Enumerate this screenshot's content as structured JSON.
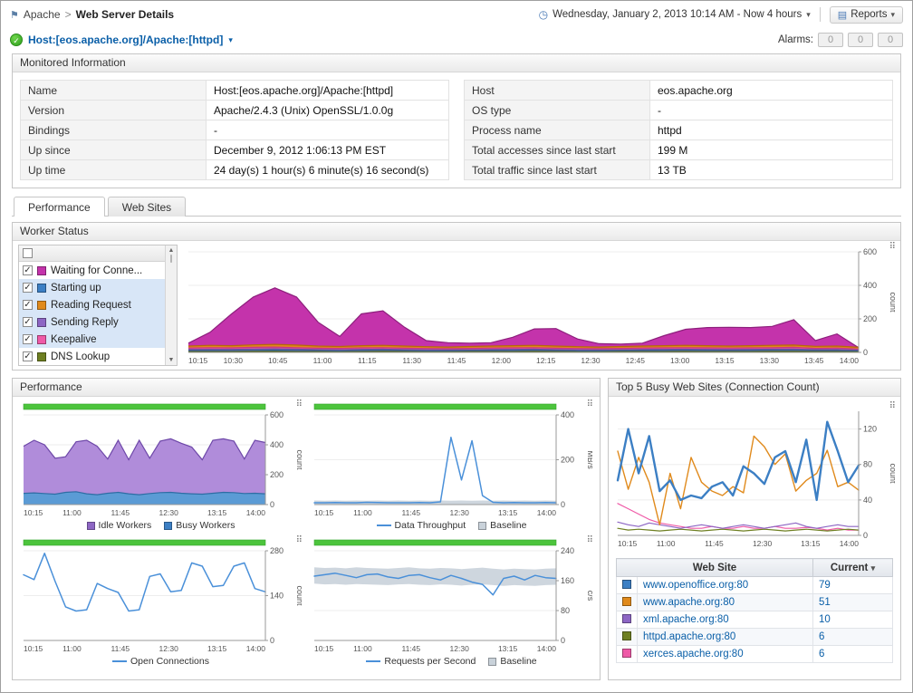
{
  "icons": {
    "clock": "◷",
    "dropdown": "▾",
    "reports": "▤",
    "flag": "⚑",
    "check": "✓",
    "options": "⠿",
    "sort": "▾",
    "scroll_up": "▲",
    "scroll_down": "▼"
  },
  "header": {
    "breadcrumb_parent": "Apache",
    "breadcrumb_sep": ">",
    "breadcrumb_current": "Web Server Details",
    "time_range": "Wednesday, January 2, 2013 10:14 AM - Now 4 hours",
    "reports_label": "Reports"
  },
  "hostbar": {
    "host_label": "Host:[eos.apache.org]/Apache:[httpd]",
    "alarms_label": "Alarms:",
    "alarm_counts": [
      "0",
      "0",
      "0"
    ]
  },
  "monitored_info": {
    "title": "Monitored Information",
    "left_rows": [
      [
        "Name",
        "Host:[eos.apache.org]/Apache:[httpd]"
      ],
      [
        "Version",
        "Apache/2.4.3 (Unix) OpenSSL/1.0.0g"
      ],
      [
        "Bindings",
        "-"
      ],
      [
        "Up since",
        "December 9, 2012 1:06:13 PM EST"
      ],
      [
        "Up time",
        "24 day(s) 1 hour(s) 6 minute(s) 16 second(s)"
      ]
    ],
    "right_rows": [
      [
        "Host",
        "eos.apache.org"
      ],
      [
        "OS type",
        "-"
      ],
      [
        "Process name",
        "httpd"
      ],
      [
        "Total accesses since last start",
        "199 M"
      ],
      [
        "Total traffic since last start",
        "13 TB"
      ]
    ]
  },
  "tabs": [
    {
      "label": "Performance",
      "active": true
    },
    {
      "label": "Web Sites",
      "active": false
    }
  ],
  "worker_status": {
    "title": "Worker Status",
    "items": [
      {
        "label": "Waiting for Conne...",
        "color": "#c433ab",
        "checked": true,
        "selected": false
      },
      {
        "label": "Starting up",
        "color": "#3c7fc4",
        "checked": true,
        "selected": true
      },
      {
        "label": "Reading Request",
        "color": "#e08a1c",
        "checked": true,
        "selected": true
      },
      {
        "label": "Sending Reply",
        "color": "#8d66c4",
        "checked": true,
        "selected": true
      },
      {
        "label": "Keepalive",
        "color": "#ef5aa7",
        "checked": true,
        "selected": true
      },
      {
        "label": "DNS Lookup",
        "color": "#6e7f21",
        "checked": true,
        "selected": false
      }
    ]
  },
  "performance_panel": {
    "title": "Performance"
  },
  "top5": {
    "title": "Top 5 Busy Web Sites (Connection Count)",
    "table": {
      "web_site_header": "Web Site",
      "current_header": "Current",
      "rows": [
        {
          "color": "#3c7fc4",
          "site": "www.openoffice.org:80",
          "current": "79"
        },
        {
          "color": "#e08a1c",
          "site": "www.apache.org:80",
          "current": "51"
        },
        {
          "color": "#8d66c4",
          "site": "xml.apache.org:80",
          "current": "10"
        },
        {
          "color": "#6e7f21",
          "site": "httpd.apache.org:80",
          "current": "6"
        },
        {
          "color": "#ef5aa7",
          "site": "xerces.apache.org:80",
          "current": "6"
        }
      ]
    }
  },
  "chart_data": {
    "worker": {
      "type": "area",
      "greenbar": false,
      "ylim": [
        0,
        600
      ],
      "yticks": [
        0,
        200,
        400,
        600
      ],
      "ylabel": "count",
      "xticks": [
        "10:15",
        "10:30",
        "10:45",
        "11:00",
        "11:15",
        "11:30",
        "11:45",
        "12:00",
        "12:15",
        "12:30",
        "12:45",
        "13:00",
        "13:15",
        "13:30",
        "13:45",
        "14:00"
      ],
      "series": [
        {
          "name": "Waiting for Connection",
          "type": "area",
          "fill": "#c433ab",
          "color": "#8d1f7c",
          "values": [
            55,
            120,
            230,
            330,
            385,
            330,
            180,
            95,
            230,
            248,
            150,
            70,
            58,
            55,
            58,
            90,
            140,
            142,
            80,
            52,
            50,
            55,
            100,
            138,
            148,
            150,
            148,
            155,
            195,
            70,
            110,
            28
          ]
        },
        {
          "name": "Reading Request",
          "type": "area",
          "fill": "#e0861b",
          "color": "#b5680a",
          "values": [
            38,
            42,
            40,
            45,
            48,
            44,
            38,
            35,
            40,
            42,
            38,
            34,
            32,
            35,
            38,
            40,
            42,
            38,
            34,
            32,
            35,
            38,
            40,
            42,
            40,
            38,
            40,
            42,
            44,
            36,
            38,
            30
          ]
        },
        {
          "name": "Keepalive",
          "type": "area",
          "fill": "#ef5aa7",
          "color": "#c73583",
          "values": [
            26,
            28,
            27,
            30,
            32,
            28,
            25,
            24,
            27,
            28,
            25,
            23,
            22,
            24,
            26,
            27,
            28,
            25,
            23,
            22,
            24,
            26,
            27,
            28,
            27,
            26,
            27,
            28,
            30,
            24,
            26,
            20
          ]
        },
        {
          "name": "Sending Reply",
          "type": "area",
          "fill": "#8f6cc0",
          "color": "#6a4a99",
          "values": [
            17,
            18,
            18,
            20,
            21,
            19,
            16,
            15,
            18,
            19,
            16,
            15,
            14,
            15,
            17,
            18,
            19,
            16,
            15,
            14,
            15,
            17,
            18,
            19,
            18,
            17,
            18,
            19,
            20,
            16,
            17,
            13
          ]
        },
        {
          "name": "Starting up",
          "type": "area",
          "fill": "#4a86c8",
          "color": "#2f62a0",
          "values": [
            10,
            11,
            10,
            12,
            13,
            11,
            10,
            9,
            11,
            12,
            10,
            9,
            9,
            10,
            11,
            11,
            12,
            10,
            9,
            9,
            10,
            11,
            11,
            12,
            11,
            10,
            11,
            12,
            12,
            10,
            10,
            8
          ]
        },
        {
          "name": "DNS Lookup",
          "type": "area",
          "fill": "#6e7f21",
          "color": "#55641a",
          "values": [
            5,
            5,
            5,
            6,
            6,
            5,
            5,
            4,
            5,
            6,
            5,
            4,
            4,
            5,
            5,
            5,
            6,
            5,
            4,
            4,
            5,
            5,
            5,
            6,
            5,
            5,
            5,
            6,
            6,
            5,
            5,
            4
          ]
        }
      ]
    },
    "idle_busy": {
      "type": "area",
      "greenbar": true,
      "ylim": [
        0,
        600
      ],
      "yticks": [
        0,
        200,
        400,
        600
      ],
      "ylabel": "count",
      "xticks": [
        "10:15",
        "11:00",
        "11:45",
        "12:30",
        "13:15",
        "14:00"
      ],
      "series": [
        {
          "name": "Idle Workers",
          "type": "area",
          "fill": "#a77fd6",
          "opacity": 0.9,
          "color": "#6d47a8",
          "values": [
            390,
            430,
            400,
            310,
            320,
            420,
            430,
            390,
            305,
            430,
            300,
            430,
            310,
            425,
            440,
            410,
            385,
            300,
            430,
            440,
            425,
            305,
            430,
            415
          ]
        },
        {
          "name": "Busy Workers",
          "type": "area",
          "fill": "#5b9bd5",
          "color": "#2e6da4",
          "values": [
            75,
            78,
            74,
            70,
            82,
            86,
            72,
            66,
            76,
            82,
            72,
            66,
            74,
            80,
            82,
            76,
            72,
            70,
            76,
            82,
            80,
            74,
            76,
            72
          ]
        }
      ],
      "legend": [
        {
          "label": "Idle Workers",
          "color": "#8d66c4",
          "shape": "square"
        },
        {
          "label": "Busy Workers",
          "color": "#3c7fc4",
          "shape": "square"
        }
      ]
    },
    "throughput": {
      "type": "line",
      "greenbar": true,
      "ylim": [
        0,
        400
      ],
      "yticks": [
        0,
        200,
        400
      ],
      "ylabel": "MB/s",
      "xticks": [
        "10:15",
        "11:00",
        "11:45",
        "12:30",
        "13:15",
        "14:00"
      ],
      "series": [
        {
          "name": "Baseline",
          "type": "band",
          "fill": "#c9d2da",
          "values": [
            18,
            17,
            18,
            17,
            18,
            17,
            18,
            17,
            18,
            17,
            18,
            17,
            18,
            17,
            18,
            17,
            18,
            17,
            18,
            17,
            18,
            17,
            18,
            17
          ],
          "values_low": [
            2,
            2,
            2,
            2,
            2,
            2,
            2,
            2,
            2,
            2,
            2,
            2,
            2,
            2,
            2,
            2,
            2,
            2,
            2,
            2,
            2,
            2,
            2,
            2
          ]
        },
        {
          "name": "Data Throughput",
          "type": "line",
          "color": "#4a90d9",
          "width": 1.5,
          "values": [
            8,
            8,
            9,
            8,
            8,
            10,
            9,
            8,
            8,
            8,
            9,
            8,
            12,
            300,
            110,
            285,
            40,
            10,
            8,
            9,
            8,
            8,
            9,
            8
          ]
        }
      ],
      "legend": [
        {
          "label": "Data Throughput",
          "color": "#4a90d9",
          "shape": "line"
        },
        {
          "label": "Baseline",
          "color": "#c9d2da",
          "shape": "square"
        }
      ]
    },
    "open_connections": {
      "type": "line",
      "greenbar": true,
      "ylim": [
        0,
        280
      ],
      "yticks": [
        0,
        140,
        280
      ],
      "ylabel": "count",
      "xticks": [
        "10:15",
        "11:00",
        "11:45",
        "12:30",
        "13:15",
        "14:00"
      ],
      "series": [
        {
          "name": "Open Connections",
          "type": "line",
          "color": "#4a90d9",
          "width": 1.5,
          "values": [
            205,
            190,
            272,
            185,
            105,
            92,
            96,
            178,
            162,
            150,
            92,
            96,
            200,
            208,
            152,
            156,
            242,
            232,
            168,
            172,
            232,
            242,
            162,
            152
          ]
        }
      ],
      "legend": [
        {
          "label": "Open Connections",
          "color": "#4a90d9",
          "shape": "line"
        }
      ]
    },
    "requests_per_second": {
      "type": "line",
      "greenbar": true,
      "ylim": [
        0,
        240
      ],
      "yticks": [
        0,
        80,
        160,
        240
      ],
      "ylabel": "c/s",
      "xticks": [
        "10:15",
        "11:00",
        "11:45",
        "12:30",
        "13:15",
        "14:00"
      ],
      "series": [
        {
          "name": "Baseline",
          "type": "band",
          "fill": "#c9d2da",
          "values": [
            196,
            194,
            195,
            193,
            196,
            194,
            193,
            192,
            194,
            196,
            193,
            192,
            194,
            193,
            191,
            193,
            195,
            192,
            190,
            192,
            191,
            190,
            192,
            193
          ],
          "values_low": [
            152,
            150,
            151,
            149,
            151,
            150,
            149,
            148,
            150,
            151,
            149,
            148,
            150,
            149,
            147,
            149,
            150,
            148,
            146,
            148,
            147,
            146,
            148,
            149
          ]
        },
        {
          "name": "Requests per Second",
          "type": "line",
          "color": "#4a90d9",
          "width": 1.5,
          "values": [
            172,
            176,
            180,
            174,
            168,
            176,
            178,
            170,
            166,
            174,
            176,
            168,
            162,
            174,
            166,
            156,
            150,
            122,
            166,
            172,
            162,
            174,
            168,
            166
          ]
        }
      ],
      "legend": [
        {
          "label": "Requests per Second",
          "color": "#4a90d9",
          "shape": "line"
        },
        {
          "label": "Baseline",
          "color": "#c9d2da",
          "shape": "square"
        }
      ]
    },
    "top5": {
      "type": "line",
      "greenbar": false,
      "ylim": [
        0,
        140
      ],
      "yticks": [
        0,
        40,
        80,
        120
      ],
      "ylabel": "count",
      "xticks": [
        "10:15",
        "11:00",
        "11:45",
        "12:30",
        "13:15",
        "14:00"
      ],
      "series": [
        {
          "name": "xerces.apache.org:80",
          "type": "line",
          "color": "#ef5aa7",
          "width": 1.2,
          "values": [
            36,
            30,
            24,
            18,
            14,
            12,
            10,
            8,
            8,
            10,
            8,
            8,
            10,
            8,
            8,
            10,
            8,
            8,
            9,
            8,
            6,
            8,
            6,
            6
          ]
        },
        {
          "name": "httpd.apache.org:80",
          "type": "line",
          "color": "#6e7f21",
          "width": 1.2,
          "values": [
            8,
            6,
            7,
            6,
            5,
            6,
            7,
            6,
            5,
            6,
            7,
            6,
            5,
            6,
            7,
            6,
            5,
            6,
            7,
            6,
            5,
            6,
            7,
            6
          ]
        },
        {
          "name": "xml.apache.org:80",
          "type": "line",
          "color": "#8d66c4",
          "width": 1.2,
          "values": [
            15,
            12,
            10,
            14,
            12,
            10,
            8,
            10,
            12,
            10,
            8,
            10,
            12,
            10,
            8,
            10,
            12,
            14,
            10,
            8,
            10,
            12,
            10,
            10
          ]
        },
        {
          "name": "www.apache.org:80",
          "type": "line",
          "color": "#e08a1c",
          "width": 1.4,
          "values": [
            95,
            52,
            88,
            60,
            12,
            70,
            30,
            88,
            60,
            50,
            45,
            55,
            48,
            112,
            100,
            80,
            92,
            50,
            62,
            70,
            96,
            55,
            60,
            51
          ]
        },
        {
          "name": "www.openoffice.org:80",
          "type": "line",
          "color": "#3c7fc4",
          "width": 2.4,
          "values": [
            62,
            120,
            70,
            112,
            50,
            62,
            40,
            45,
            42,
            55,
            60,
            45,
            78,
            70,
            58,
            88,
            95,
            60,
            108,
            40,
            128,
            95,
            60,
            79
          ]
        }
      ]
    }
  }
}
